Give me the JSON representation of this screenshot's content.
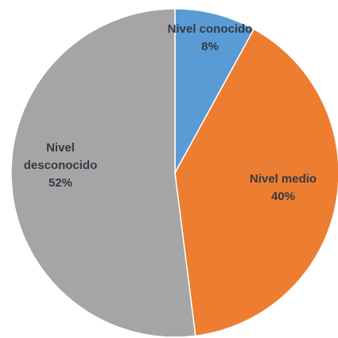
{
  "chart_data": {
    "type": "pie",
    "slices": [
      {
        "label_lines": [
          "Nivel conocido"
        ],
        "value": 8,
        "value_label": "8%",
        "color": "#5b9bd5"
      },
      {
        "label_lines": [
          "Nivel medio"
        ],
        "value": 40,
        "value_label": "40%",
        "color": "#ed7d31"
      },
      {
        "label_lines": [
          "Nivel",
          "desconocido"
        ],
        "value": 52,
        "value_label": "52%",
        "color": "#a5a5a5"
      }
    ],
    "start_angle_deg": 0,
    "direction": "clockwise",
    "legend": "none",
    "data_labels": "inside"
  }
}
